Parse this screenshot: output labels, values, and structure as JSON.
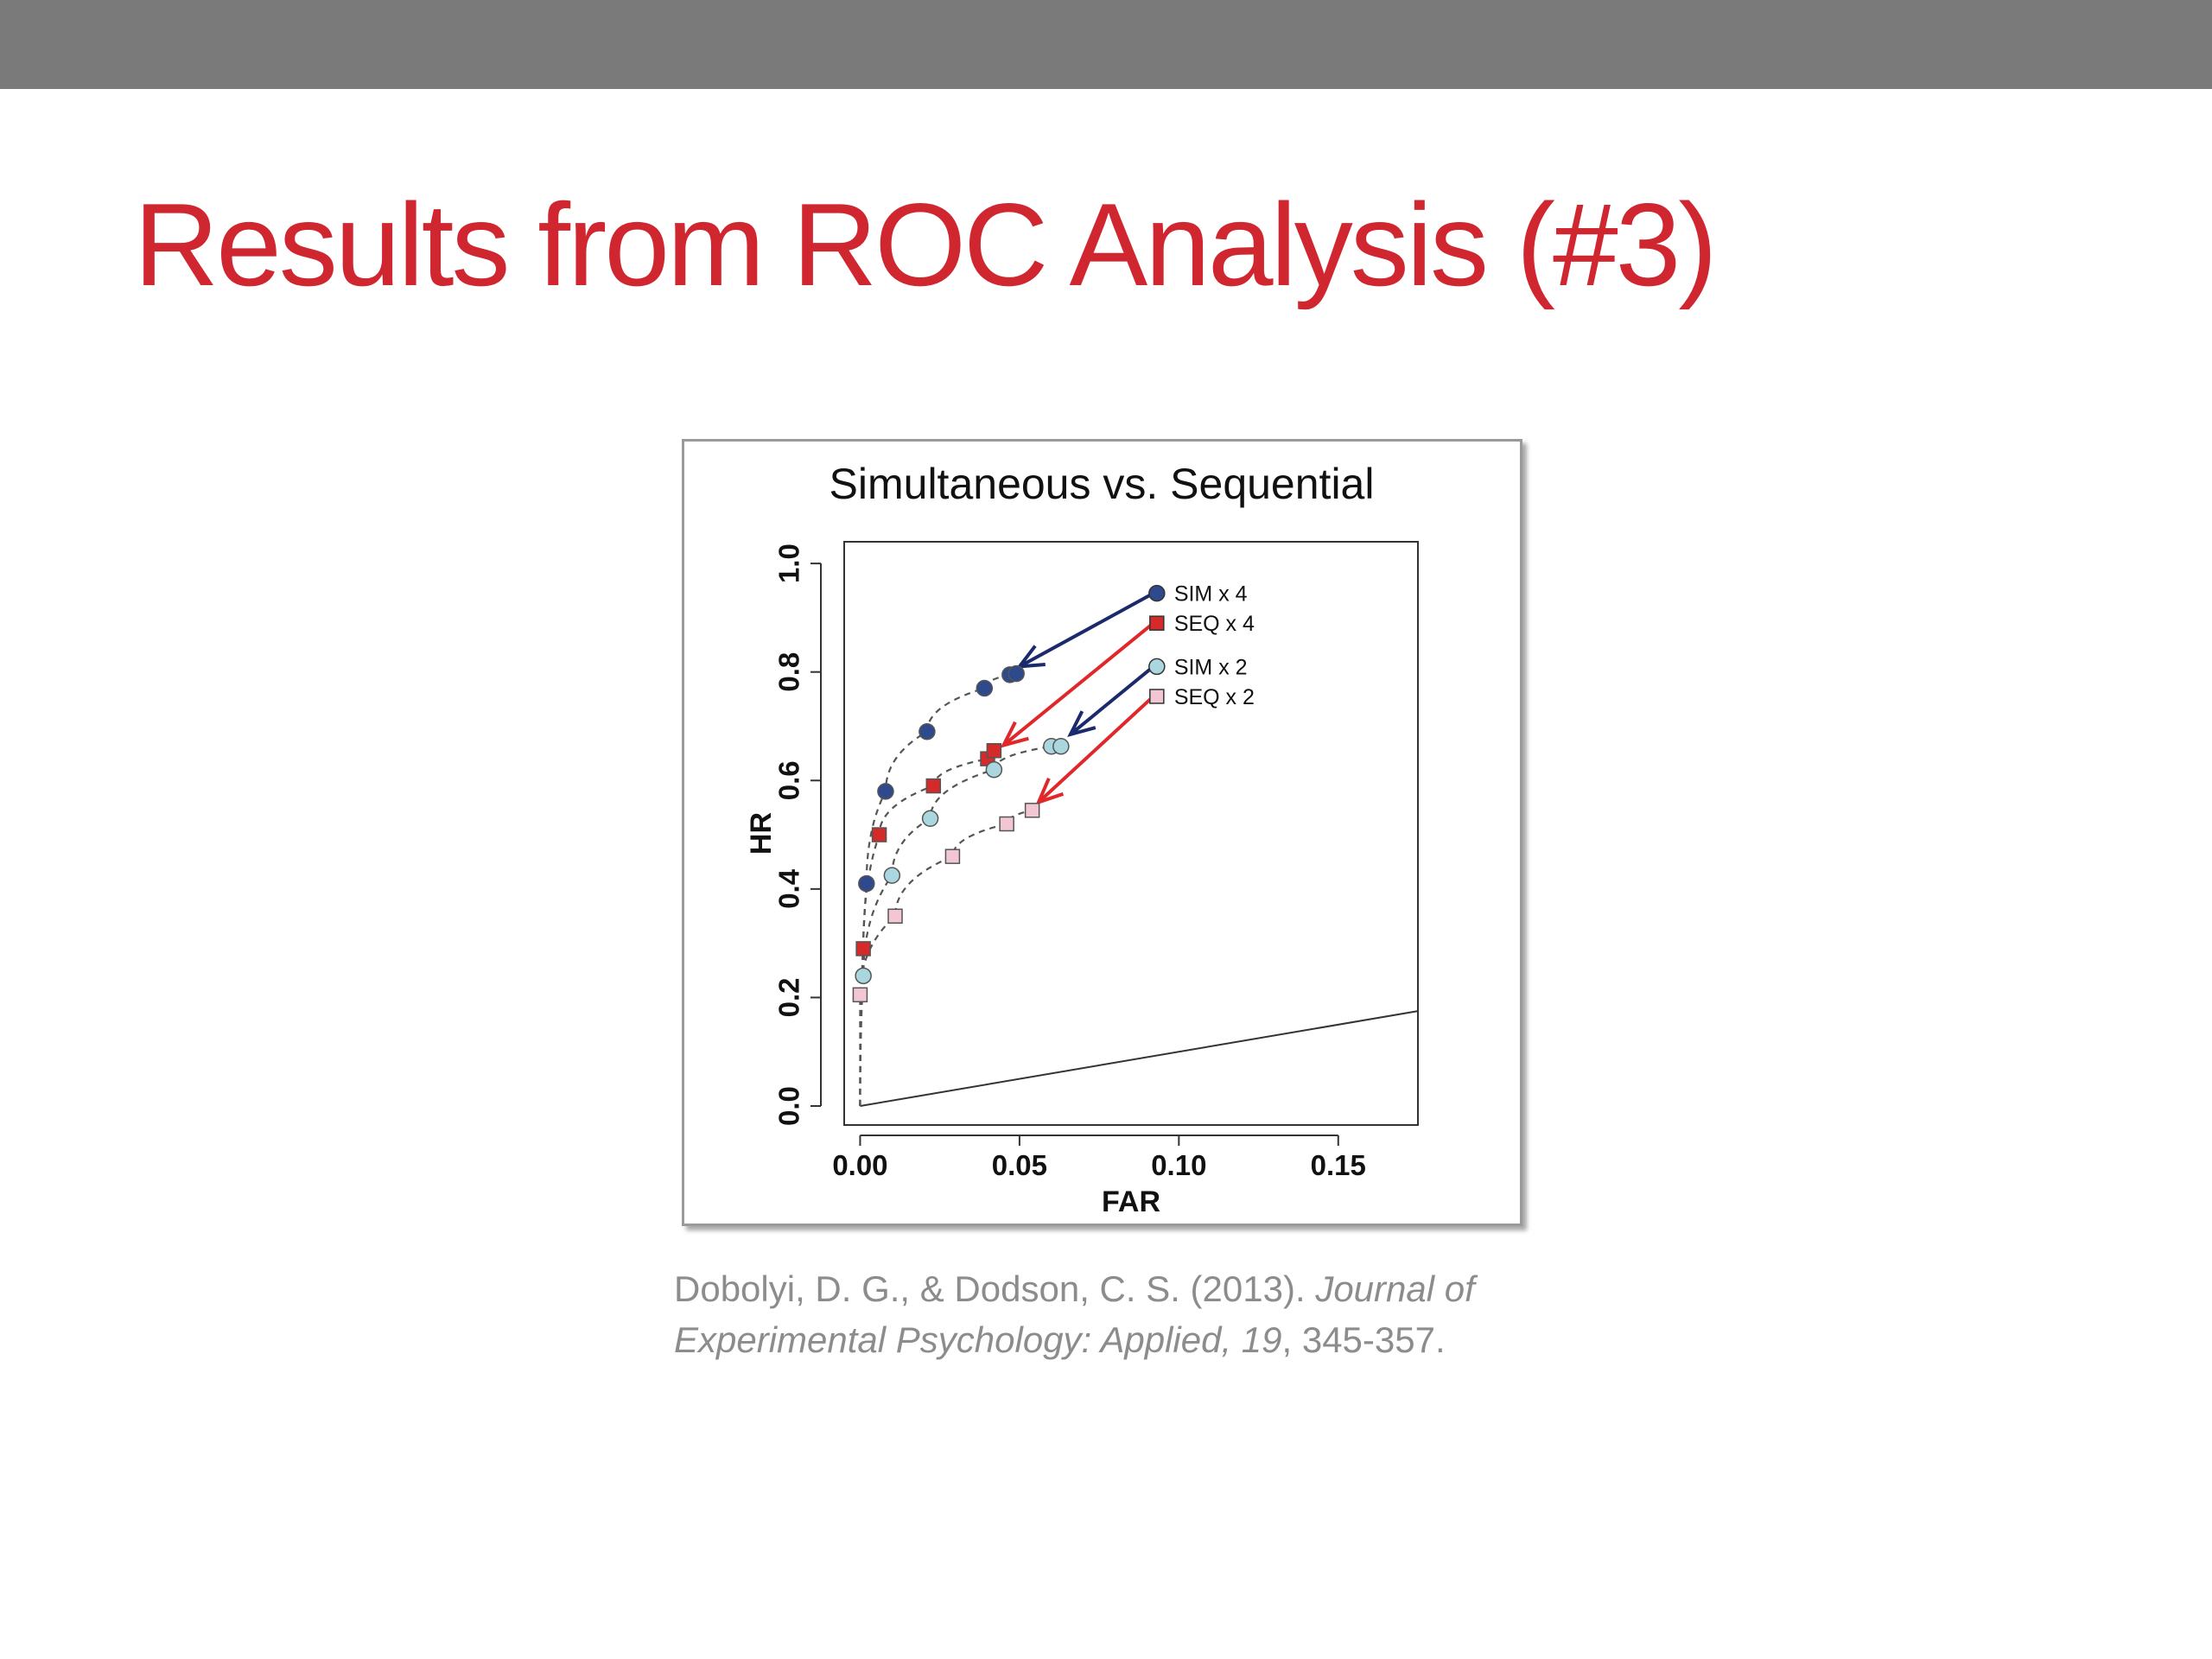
{
  "slide": {
    "title": "Results from ROC Analysis (#3)",
    "title_color": "#d0262f",
    "top_bar_color": "#7a7a7a"
  },
  "citation": {
    "authors": "Dobolyi, D. G., & Dodson, C. S. (2013). ",
    "journal_line1": "Journal of",
    "journal_line2": "Experimental Psychology: Applied, 19",
    "pages": ", 345-357."
  },
  "chart_data": {
    "type": "scatter",
    "title": "Simultaneous vs. Sequential",
    "xlabel": "FAR",
    "ylabel": "HR",
    "xlim": [
      -0.005,
      0.175
    ],
    "ylim": [
      -0.035,
      1.04
    ],
    "xticks": [
      0,
      0.05,
      0.1,
      0.15
    ],
    "xtick_labels": [
      "0.00",
      "0.05",
      "0.10",
      "0.15"
    ],
    "yticks": [
      0,
      0.2,
      0.4,
      0.6,
      0.8,
      1.0
    ],
    "ytick_labels": [
      "0.0",
      "0.2",
      "0.4",
      "0.6",
      "0.8",
      "1.0"
    ],
    "grid": false,
    "legend_position": "top-right",
    "series": [
      {
        "name": "SIM x 4",
        "marker": "circle",
        "color": "#2f4a8c",
        "x": [
          0.002,
          0.008,
          0.021,
          0.039,
          0.047,
          0.049
        ],
        "y": [
          0.41,
          0.58,
          0.69,
          0.77,
          0.795,
          0.797
        ]
      },
      {
        "name": "SEQ x 4",
        "marker": "square",
        "color": "#d42a2a",
        "x": [
          0.001,
          0.006,
          0.023,
          0.04,
          0.042
        ],
        "y": [
          0.29,
          0.5,
          0.59,
          0.64,
          0.655
        ]
      },
      {
        "name": "SIM x 2",
        "marker": "circle",
        "color": "#a9d6df",
        "x": [
          0.001,
          0.01,
          0.022,
          0.042,
          0.06,
          0.063
        ],
        "y": [
          0.24,
          0.425,
          0.53,
          0.62,
          0.663,
          0.663
        ]
      },
      {
        "name": "SEQ x 2",
        "marker": "square",
        "color": "#f3c6d4",
        "x": [
          0.0,
          0.011,
          0.029,
          0.046,
          0.054
        ],
        "y": [
          0.205,
          0.35,
          0.46,
          0.52,
          0.545
        ]
      }
    ],
    "chance_line": {
      "x": [
        0,
        0.175
      ],
      "y": [
        0,
        0.175
      ]
    },
    "arrows": [
      {
        "series": "SIM x 4",
        "color": "#1b2a6b",
        "from": [
          0.092,
          0.945
        ],
        "to": [
          0.05,
          0.81
        ]
      },
      {
        "series": "SEQ x 4",
        "color": "#e0282a",
        "from": [
          0.092,
          0.89
        ],
        "to": [
          0.045,
          0.665
        ]
      },
      {
        "series": "SIM x 2",
        "color": "#1b2a6b",
        "from": [
          0.092,
          0.81
        ],
        "to": [
          0.066,
          0.685
        ]
      },
      {
        "series": "SEQ x 2",
        "color": "#e0282a",
        "from": [
          0.092,
          0.755
        ],
        "to": [
          0.056,
          0.56
        ]
      }
    ]
  }
}
